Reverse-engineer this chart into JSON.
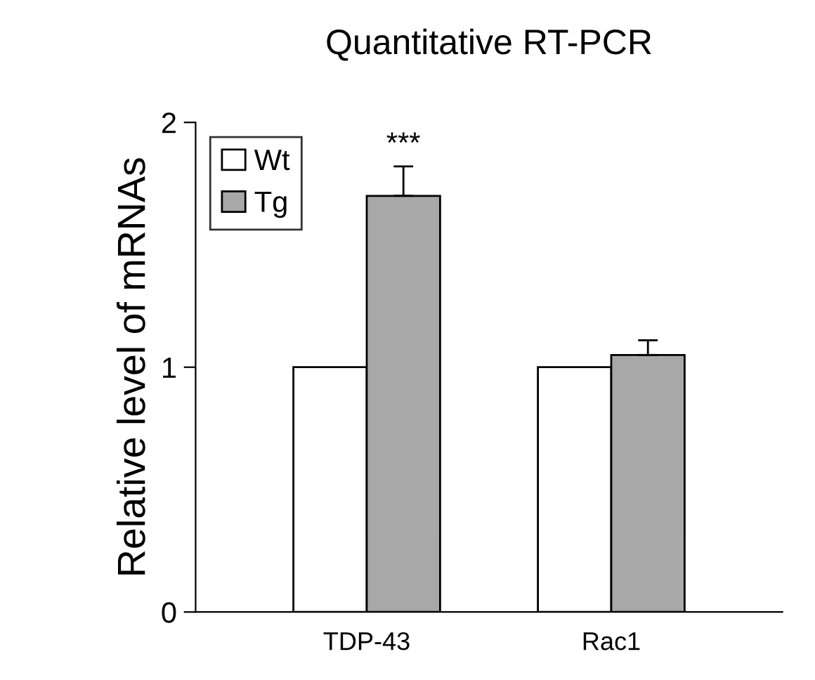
{
  "chart_data": {
    "type": "bar",
    "title": "Quantitative RT-PCR",
    "ylabel": "Relative level of mRNAs",
    "categories": [
      "TDP-43",
      "Rac1"
    ],
    "series": [
      {
        "name": "Wt",
        "color": "#ffffff",
        "values": [
          1.0,
          1.0
        ]
      },
      {
        "name": "Tg",
        "color": "#a8a8a8",
        "values": [
          1.7,
          1.05
        ],
        "errors": [
          [
            1.7,
            1.82
          ],
          [
            1.05,
            1.11
          ]
        ]
      }
    ],
    "ylim": [
      0,
      2
    ],
    "yticks": [
      0,
      1,
      2
    ],
    "legend": "top left",
    "grid": false,
    "annotations": [
      "***"
    ]
  }
}
